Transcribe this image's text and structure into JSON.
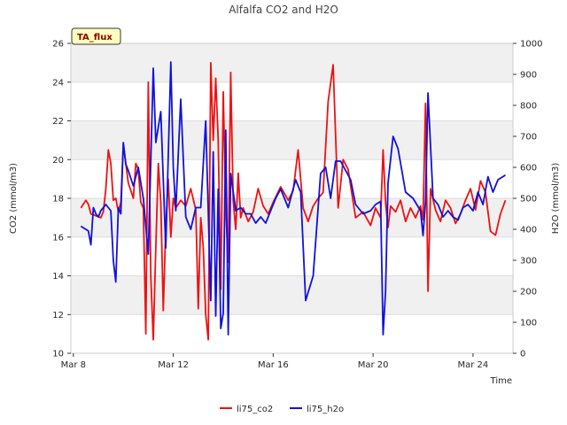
{
  "chart_data": {
    "type": "line",
    "title": "Alfalfa CO2 and H2O",
    "badge": "TA_flux",
    "xlabel": "Time",
    "ylabel_left": "CO2 (mmol/m3)",
    "ylabel_right": "H2O (mmol/m3)",
    "xlim": [
      7.9,
      25.6
    ],
    "ylim_left": [
      10,
      26
    ],
    "ylim_right": [
      0,
      1000
    ],
    "x_ticks": [
      8,
      12,
      16,
      20,
      24
    ],
    "x_tick_labels": [
      "Mar 8",
      "Mar 12",
      "Mar 16",
      "Mar 20",
      "Mar 24"
    ],
    "y_ticks_left": [
      10,
      12,
      14,
      16,
      18,
      20,
      22,
      24,
      26
    ],
    "y_ticks_right": [
      0,
      100,
      200,
      300,
      400,
      500,
      600,
      700,
      800,
      900,
      1000
    ],
    "grid": true,
    "banded_background": true,
    "legend_placement": "bottom-center",
    "series": [
      {
        "name": "li75_co2",
        "axis": "left",
        "color": "#ee1111",
        "x": [
          8.3,
          8.5,
          8.6,
          8.7,
          8.9,
          9.1,
          9.2,
          9.3,
          9.4,
          9.5,
          9.6,
          9.7,
          9.8,
          9.9,
          10.0,
          10.2,
          10.4,
          10.5,
          10.6,
          10.7,
          10.8,
          10.9,
          11.0,
          11.1,
          11.2,
          11.3,
          11.4,
          11.5,
          11.6,
          11.7,
          11.8,
          11.9,
          12.0,
          12.1,
          12.3,
          12.5,
          12.7,
          12.9,
          13.0,
          13.1,
          13.2,
          13.3,
          13.4,
          13.5,
          13.6,
          13.7,
          13.8,
          13.9,
          14.0,
          14.1,
          14.2,
          14.3,
          14.4,
          14.5,
          14.6,
          14.7,
          14.8,
          15.0,
          15.2,
          15.4,
          15.6,
          15.8,
          16.0,
          16.3,
          16.6,
          16.8,
          17.0,
          17.2,
          17.4,
          17.6,
          17.8,
          18.0,
          18.2,
          18.4,
          18.6,
          18.8,
          19.0,
          19.3,
          19.6,
          19.9,
          20.1,
          20.3,
          20.4,
          20.5,
          20.6,
          20.7,
          20.9,
          21.1,
          21.3,
          21.5,
          21.7,
          21.9,
          22.0,
          22.1,
          22.2,
          22.3,
          22.5,
          22.7,
          22.9,
          23.1,
          23.3,
          23.5,
          23.7,
          23.9,
          24.1,
          24.3,
          24.5,
          24.7,
          24.9,
          25.1,
          25.3
        ],
        "values": [
          17.5,
          17.9,
          17.7,
          17.2,
          17.1,
          17.0,
          17.3,
          18.5,
          20.5,
          19.8,
          17.9,
          18.0,
          17.3,
          17.8,
          20.8,
          18.8,
          18.0,
          19.8,
          19.5,
          17.8,
          17.5,
          11.0,
          24.0,
          14.0,
          10.7,
          15.5,
          19.8,
          17.8,
          12.2,
          16.5,
          19.0,
          16.0,
          18.0,
          17.5,
          17.9,
          17.6,
          18.5,
          17.4,
          12.3,
          17.0,
          15.5,
          12.0,
          10.7,
          25.0,
          21.0,
          24.2,
          21.0,
          13.3,
          23.5,
          17.5,
          14.7,
          24.5,
          17.9,
          16.4,
          19.3,
          17.0,
          17.5,
          16.8,
          17.3,
          18.5,
          17.6,
          17.2,
          17.8,
          18.6,
          17.9,
          18.4,
          20.5,
          17.5,
          16.8,
          17.6,
          18.0,
          18.3,
          23.0,
          24.9,
          17.5,
          20.0,
          19.5,
          17.0,
          17.3,
          16.6,
          17.5,
          17.0,
          20.5,
          17.8,
          16.5,
          17.6,
          17.3,
          17.9,
          16.8,
          17.5,
          17.0,
          17.6,
          16.9,
          22.9,
          13.2,
          18.5,
          17.4,
          16.8,
          17.9,
          17.5,
          16.7,
          17.2,
          17.9,
          18.5,
          17.4,
          18.9,
          18.3,
          16.3,
          16.1,
          17.2,
          17.9
        ]
      },
      {
        "name": "li75_h2o",
        "axis": "right",
        "color": "#1111dd",
        "x": [
          8.3,
          8.5,
          8.6,
          8.7,
          8.8,
          8.9,
          9.0,
          9.1,
          9.3,
          9.5,
          9.6,
          9.7,
          9.8,
          9.9,
          10.0,
          10.1,
          10.2,
          10.4,
          10.6,
          10.8,
          11.0,
          11.2,
          11.3,
          11.5,
          11.7,
          11.9,
          12.0,
          12.1,
          12.3,
          12.5,
          12.7,
          12.9,
          13.1,
          13.3,
          13.5,
          13.6,
          13.7,
          13.8,
          13.9,
          14.0,
          14.1,
          14.2,
          14.3,
          14.5,
          14.7,
          14.9,
          15.1,
          15.3,
          15.5,
          15.7,
          15.9,
          16.1,
          16.3,
          16.6,
          16.9,
          17.1,
          17.3,
          17.6,
          17.9,
          18.1,
          18.3,
          18.5,
          18.7,
          18.9,
          19.1,
          19.3,
          19.6,
          19.9,
          20.1,
          20.3,
          20.4,
          20.5,
          20.6,
          20.8,
          21.0,
          21.3,
          21.6,
          21.9,
          22.0,
          22.1,
          22.2,
          22.4,
          22.6,
          22.8,
          23.0,
          23.2,
          23.4,
          23.6,
          23.8,
          24.0,
          24.2,
          24.4,
          24.6,
          24.8,
          25.0,
          25.2,
          25.3
        ],
        "values": [
          410,
          400,
          395,
          350,
          470,
          450,
          440,
          460,
          480,
          460,
          300,
          230,
          470,
          450,
          680,
          610,
          590,
          540,
          600,
          500,
          320,
          920,
          680,
          780,
          340,
          940,
          600,
          460,
          820,
          440,
          400,
          470,
          470,
          750,
          170,
          650,
          120,
          530,
          80,
          130,
          720,
          60,
          580,
          460,
          470,
          450,
          450,
          420,
          440,
          420,
          460,
          500,
          530,
          470,
          560,
          520,
          170,
          250,
          580,
          600,
          500,
          620,
          620,
          590,
          560,
          480,
          450,
          460,
          480,
          490,
          60,
          200,
          550,
          700,
          660,
          520,
          500,
          460,
          380,
          490,
          840,
          500,
          480,
          440,
          460,
          440,
          430,
          470,
          480,
          460,
          520,
          480,
          570,
          520,
          560,
          570,
          575
        ]
      }
    ]
  }
}
